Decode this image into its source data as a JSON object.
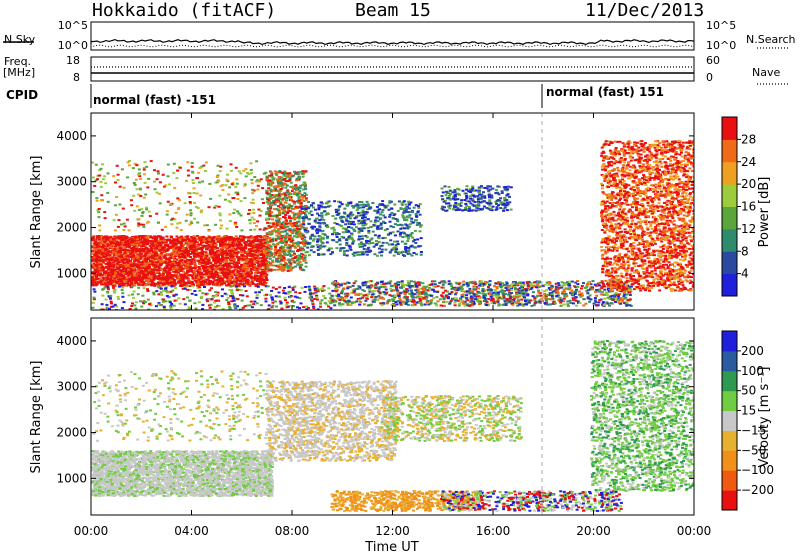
{
  "header": {
    "station": "Hokkaido (fitACF)",
    "beam": "Beam 15",
    "date": "11/Dec/2013"
  },
  "left_labels": {
    "nsky": "N.Sky",
    "freq_1": "Freq.",
    "freq_2": "[MHz]",
    "cpid": "CPID"
  },
  "right_labels": {
    "nsearch": "N.Search",
    "nave": "Nave"
  },
  "cpid_segments": [
    "normal (fast) -151",
    "normal (fast) 151"
  ],
  "chart_data": [
    {
      "type": "line",
      "name": "noise-panel",
      "left_ticks": [
        "10^5",
        "10^0"
      ],
      "right_ticks": [
        "10^5",
        "10^0"
      ],
      "series": [
        {
          "name": "N.Sky"
        },
        {
          "name": "N.Search"
        }
      ]
    },
    {
      "type": "line",
      "name": "freq-panel",
      "left_ticks": [
        "18",
        "8"
      ],
      "right_ticks": [
        "60",
        "0"
      ],
      "series": [
        {
          "name": "Freq."
        },
        {
          "name": "Nave"
        }
      ]
    },
    {
      "type": "heatmap",
      "name": "power-panel",
      "xlim": [
        0,
        24
      ],
      "ylim": [
        200,
        4500
      ],
      "ylabel": "Slant Range [km]",
      "yticks": [
        1000,
        2000,
        3000,
        4000
      ],
      "colorbar": {
        "label": "Power [dB]",
        "ticks": [
          4,
          8,
          12,
          16,
          20,
          24,
          28
        ],
        "colors": [
          "#1f1fdc",
          "#2a4aa0",
          "#2e8c6c",
          "#5aa63a",
          "#9ccc3c",
          "#f0a020",
          "#f06a18",
          "#e81010"
        ]
      }
    },
    {
      "type": "heatmap",
      "name": "velocity-panel",
      "xlim": [
        0,
        24
      ],
      "ylim": [
        200,
        4500
      ],
      "ylabel": "Slant Range [km]",
      "yticks": [
        1000,
        2000,
        3000,
        4000
      ],
      "colorbar": {
        "label": "Velocity [m s⁻¹]",
        "ticks": [
          -200,
          -100,
          -50,
          -15,
          15,
          50,
          100,
          200
        ],
        "tick_labels": [
          "−200",
          "−100",
          "−50",
          "−15",
          "15",
          "50",
          "100",
          "200"
        ],
        "colors": [
          "#e81010",
          "#f05a10",
          "#f09018",
          "#e8b030",
          "#c8c8c8",
          "#70cc40",
          "#2e9a50",
          "#2a5aa0",
          "#1f1fdc"
        ]
      }
    }
  ],
  "x_axis": {
    "label": "Time UT",
    "ticks": [
      "00:00",
      "04:00",
      "08:00",
      "12:00",
      "16:00",
      "20:00",
      "00:00"
    ]
  }
}
